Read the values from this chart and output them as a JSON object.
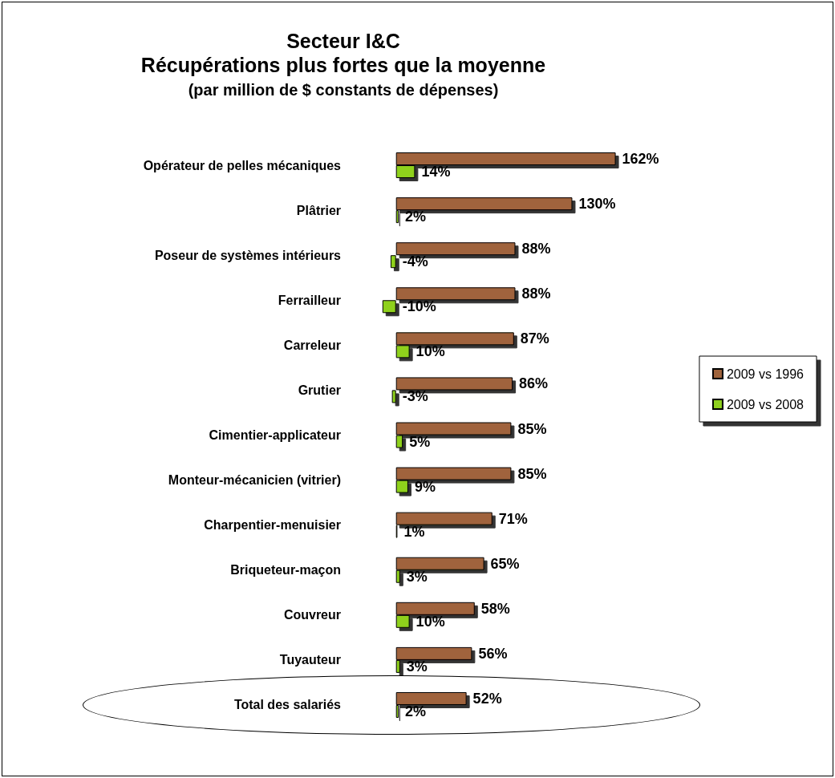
{
  "chart_data": {
    "type": "bar",
    "orientation": "horizontal",
    "title": "Secteur I&C\nRécupérations plus fortes que la moyenne",
    "subtitle": "(par million de $ constants de dépenses)",
    "categories": [
      "Opérateur de pelles mécaniques",
      "Plâtrier",
      "Poseur de systèmes intérieurs",
      "Ferrailleur",
      "Carreleur",
      "Grutier",
      "Cimentier-applicateur",
      "Monteur-mécanicien (vitrier)",
      "Charpentier-menuisier",
      "Briqueteur-maçon",
      "Couvreur",
      "Tuyauteur",
      "Total des salariés"
    ],
    "series": [
      {
        "name": "2009 vs 1996",
        "color": "#a0643c",
        "values": [
          162,
          130,
          88,
          88,
          87,
          86,
          85,
          85,
          71,
          65,
          58,
          56,
          52
        ],
        "value_labels": [
          "162%",
          "130%",
          "88%",
          "88%",
          "87%",
          "86%",
          "85%",
          "85%",
          "71%",
          "65%",
          "58%",
          "56%",
          "52%"
        ]
      },
      {
        "name": "2009 vs 2008",
        "color": "#8fd11f",
        "values": [
          14,
          2,
          -4,
          -10,
          10,
          -3,
          5,
          9,
          1,
          3,
          10,
          3,
          2
        ],
        "value_labels": [
          "14%",
          "2%",
          "-4%",
          "-10%",
          "10%",
          "-3%",
          "5%",
          "9%",
          "1%",
          "3%",
          "10%",
          "3%",
          "2%"
        ]
      }
    ],
    "legend": "right"
  }
}
